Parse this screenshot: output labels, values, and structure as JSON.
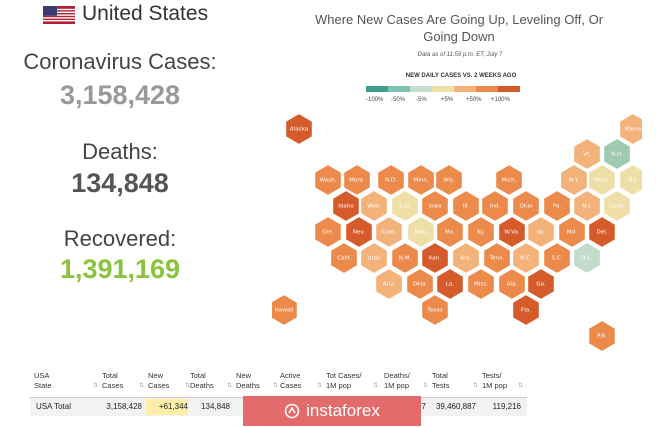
{
  "header": {
    "country": "United States"
  },
  "stats": {
    "cases_label": "Coronavirus Cases:",
    "cases_value": "3,158,428",
    "deaths_label": "Deaths:",
    "deaths_value": "134,848",
    "recovered_label": "Recovered:",
    "recovered_value": "1,391,169"
  },
  "map": {
    "title_line1": "Where New Cases Are Going Up, Leveling Off, Or",
    "title_line2": "Going Down",
    "date_note": "Data as of 11:59 p.m. ET, July 7",
    "legend_title": "NEW DAILY CASES VS. 2 WEEKS AGO",
    "legend_labels": [
      "-100%",
      "-50%",
      "-5%",
      "+5%",
      "+50%",
      "+100%"
    ],
    "legend_colors": [
      "#3f9f8f",
      "#7dc2b1",
      "#c2e0cd",
      "#eedfa6",
      "#f3b27a",
      "#ec8a4c",
      "#d55c2a"
    ],
    "states": [
      {
        "abbr": "Alaska",
        "color": "#d55c2a"
      },
      {
        "abbr": "Maine",
        "color": "#f3b27a"
      },
      {
        "abbr": "Vt.",
        "color": "#f3b27a"
      },
      {
        "abbr": "N.H.",
        "color": "#9fc9b0"
      },
      {
        "abbr": "Wash.",
        "color": "#ec8a4c"
      },
      {
        "abbr": "Mont.",
        "color": "#ec8a4c"
      },
      {
        "abbr": "N.D.",
        "color": "#ec8a4c"
      },
      {
        "abbr": "Minn.",
        "color": "#ec8a4c"
      },
      {
        "abbr": "Wis.",
        "color": "#ec8a4c"
      },
      {
        "abbr": "Mich.",
        "color": "#ec8a4c"
      },
      {
        "abbr": "N.Y.",
        "color": "#f3b27a"
      },
      {
        "abbr": "Mass.",
        "color": "#eedfa6"
      },
      {
        "abbr": "R.I.",
        "color": "#eedfa6"
      },
      {
        "abbr": "Idaho",
        "color": "#d55c2a"
      },
      {
        "abbr": "Wyo.",
        "color": "#f3b27a"
      },
      {
        "abbr": "S.D.",
        "color": "#eedfa6"
      },
      {
        "abbr": "Iowa",
        "color": "#ec8a4c"
      },
      {
        "abbr": "Ill.",
        "color": "#ec8a4c"
      },
      {
        "abbr": "Ind.",
        "color": "#ec8a4c"
      },
      {
        "abbr": "Ohio",
        "color": "#ec8a4c"
      },
      {
        "abbr": "Pa.",
        "color": "#ec8a4c"
      },
      {
        "abbr": "N.J.",
        "color": "#f3b27a"
      },
      {
        "abbr": "Conn.",
        "color": "#eedfa6"
      },
      {
        "abbr": "Ore.",
        "color": "#ec8a4c"
      },
      {
        "abbr": "Nev.",
        "color": "#d55c2a"
      },
      {
        "abbr": "Colo.",
        "color": "#f3b27a"
      },
      {
        "abbr": "Neb.",
        "color": "#eedfa6"
      },
      {
        "abbr": "Mo.",
        "color": "#ec8a4c"
      },
      {
        "abbr": "Ky.",
        "color": "#ec8a4c"
      },
      {
        "abbr": "W.Va.",
        "color": "#d55c2a"
      },
      {
        "abbr": "Va.",
        "color": "#f3b27a"
      },
      {
        "abbr": "Md.",
        "color": "#ec8a4c"
      },
      {
        "abbr": "Del.",
        "color": "#d55c2a"
      },
      {
        "abbr": "Calif.",
        "color": "#ec8a4c"
      },
      {
        "abbr": "Utah",
        "color": "#f3b27a"
      },
      {
        "abbr": "N.M.",
        "color": "#ec8a4c"
      },
      {
        "abbr": "Kan.",
        "color": "#d55c2a"
      },
      {
        "abbr": "Ark.",
        "color": "#f3b27a"
      },
      {
        "abbr": "Tenn.",
        "color": "#ec8a4c"
      },
      {
        "abbr": "N.C.",
        "color": "#f3b27a"
      },
      {
        "abbr": "S.C.",
        "color": "#ec8a4c"
      },
      {
        "abbr": "D.C.",
        "color": "#c2dccb"
      },
      {
        "abbr": "Ariz.",
        "color": "#f3b27a"
      },
      {
        "abbr": "Okla.",
        "color": "#ec8a4c"
      },
      {
        "abbr": "La.",
        "color": "#d55c2a"
      },
      {
        "abbr": "Miss.",
        "color": "#ec8a4c"
      },
      {
        "abbr": "Ala.",
        "color": "#ec8a4c"
      },
      {
        "abbr": "Ga.",
        "color": "#d55c2a"
      },
      {
        "abbr": "Texas",
        "color": "#ec8a4c"
      },
      {
        "abbr": "Fla.",
        "color": "#d55c2a"
      },
      {
        "abbr": "Hawaii",
        "color": "#ec8a4c"
      },
      {
        "abbr": "P.R.",
        "color": "#ec8a4c"
      }
    ]
  },
  "table": {
    "headers": [
      [
        "USA",
        "State"
      ],
      [
        "Total",
        "Cases"
      ],
      [
        "New",
        "Cases"
      ],
      [
        "Total",
        "Deaths"
      ],
      [
        "New",
        "Deaths"
      ],
      [
        "Active",
        "Cases"
      ],
      [
        "Tot Cases/",
        "1M pop"
      ],
      [
        "Deaths/",
        "1M pop"
      ],
      [
        "Total",
        "Tests"
      ],
      [
        "Tests/",
        "1M pop"
      ]
    ],
    "row": [
      "USA Total",
      "3,158,428",
      "+61,344",
      "134,848",
      "",
      "",
      "",
      "7",
      "39,460,887",
      "119,216"
    ]
  },
  "watermark": {
    "text": "instaforex"
  },
  "colors": {
    "cases": "#999999",
    "deaths": "#555555",
    "recovered": "#8ac43e",
    "new_cases_bg": "#ffeeaa"
  }
}
